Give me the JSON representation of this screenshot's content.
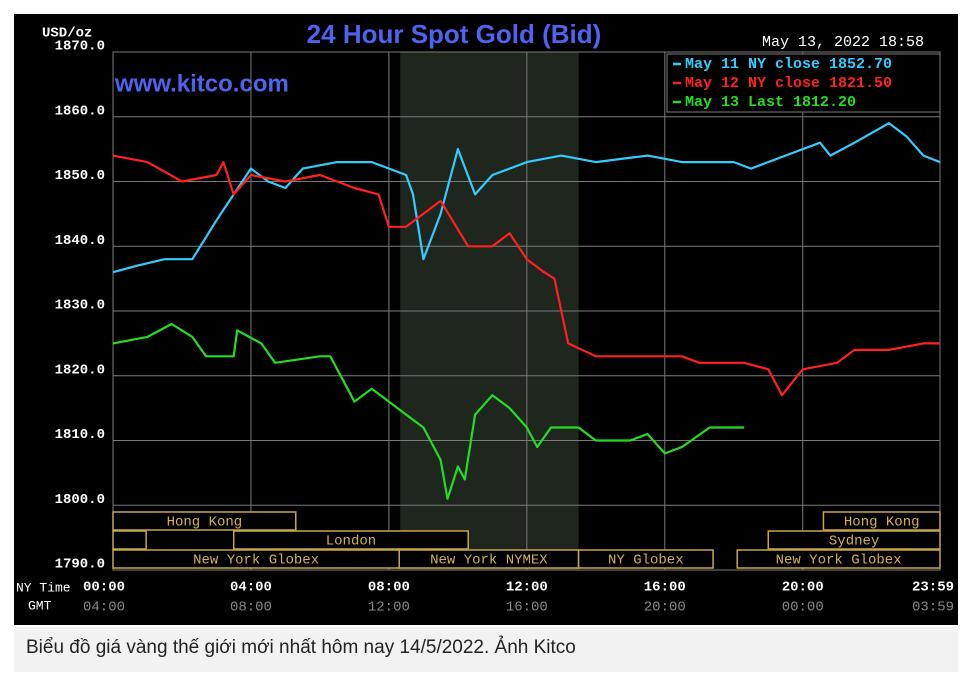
{
  "chart_data": {
    "type": "line",
    "title": "24 Hour Spot Gold (Bid)",
    "unit_label": "USD/oz",
    "timestamp": "May 13, 2022 18:58",
    "watermark": "www.kitco.com",
    "xlabel": "NY Time",
    "x2label": "GMT",
    "xlim": [
      0,
      23.98
    ],
    "xticks": [
      {
        "value": 0,
        "label": "00:00"
      },
      {
        "value": 4,
        "label": "04:00"
      },
      {
        "value": 8,
        "label": "08:00"
      },
      {
        "value": 12,
        "label": "12:00"
      },
      {
        "value": 16,
        "label": "16:00"
      },
      {
        "value": 20,
        "label": "20:00"
      },
      {
        "value": 23.98,
        "label": "23:59"
      }
    ],
    "gmt_labels": [
      "04:00",
      "08:00",
      "12:00",
      "16:00",
      "20:00",
      "00:00",
      "03:59"
    ],
    "ylim": [
      1790,
      1870
    ],
    "yticks": [
      {
        "value": 1790,
        "label": "1790.0"
      },
      {
        "value": 1800,
        "label": "1800.0"
      },
      {
        "value": 1810,
        "label": "1810.0"
      },
      {
        "value": 1820,
        "label": "1820.0"
      },
      {
        "value": 1830,
        "label": "1830.0"
      },
      {
        "value": 1840,
        "label": "1840.0"
      },
      {
        "value": 1850,
        "label": "1850.0"
      },
      {
        "value": 1860,
        "label": "1860.0"
      },
      {
        "value": 1870,
        "label": "1870.0"
      }
    ],
    "grid": true,
    "legend": "upper right",
    "shaded": [
      8.33,
      13.5
    ],
    "series": [
      {
        "name": "May 11 NY close 1852.70",
        "color": "#33ccff",
        "x": [
          0,
          0.7,
          1.5,
          2.3,
          3,
          3.5,
          4,
          4.5,
          5,
          5.5,
          6.5,
          7.5,
          8.5,
          8.7,
          9.0,
          9.5,
          10,
          10.5,
          11,
          12,
          13,
          14,
          15.5,
          16.5,
          18,
          18.5,
          19.5,
          20.5,
          20.8,
          21.5,
          22.5,
          23,
          23.5,
          23.98
        ],
        "values": [
          1836,
          1837,
          1838,
          1838,
          1844,
          1848,
          1852,
          1850,
          1849,
          1852,
          1853,
          1853,
          1851,
          1848,
          1838,
          1845,
          1855,
          1848,
          1851,
          1853,
          1854,
          1853,
          1854,
          1853,
          1853,
          1852,
          1854,
          1856,
          1854,
          1856,
          1859,
          1857,
          1854,
          1853
        ]
      },
      {
        "name": "May 12 NY close 1821.50",
        "color": "#ff2020",
        "x": [
          0,
          1,
          2,
          3,
          3.2,
          3.5,
          4,
          5,
          6,
          7,
          7.7,
          8,
          8.5,
          9.5,
          10.3,
          11,
          11.5,
          12,
          12.5,
          12.8,
          13.2,
          14,
          15.5,
          16.5,
          17,
          18.3,
          19,
          19.4,
          20,
          21,
          21.5,
          22.5,
          23.5,
          23.98
        ],
        "values": [
          1854,
          1853,
          1850,
          1851,
          1853,
          1848,
          1851,
          1850,
          1851,
          1849,
          1848,
          1843,
          1843,
          1847,
          1840,
          1840,
          1842,
          1838,
          1836,
          1835,
          1825,
          1823,
          1823,
          1823,
          1822,
          1822,
          1821,
          1817,
          1821,
          1822,
          1824,
          1824,
          1825,
          1825
        ]
      },
      {
        "name": "May 13 Last 1812.20",
        "color": "#22dd22",
        "x": [
          0,
          1,
          1.7,
          2.3,
          2.7,
          3.5,
          3.6,
          4.3,
          4.7,
          6,
          6.3,
          6.7,
          7,
          7.5,
          8,
          8.5,
          9,
          9.5,
          9.7,
          10,
          10.2,
          10.5,
          11,
          11.5,
          12,
          12.3,
          12.7,
          13.5,
          14,
          15,
          15.5,
          16,
          16.5,
          17.3,
          17.7,
          18.3
        ],
        "values": [
          1825,
          1826,
          1828,
          1826,
          1823,
          1823,
          1827,
          1825,
          1822,
          1823,
          1823,
          1819,
          1816,
          1818,
          1816,
          1814,
          1812,
          1807,
          1801,
          1806,
          1804,
          1814,
          1817,
          1815,
          1812,
          1809,
          1812,
          1812,
          1810,
          1810,
          1811,
          1808,
          1809,
          1812,
          1812,
          1812
        ]
      }
    ],
    "session_rows": [
      [
        {
          "name": "Hong Kong",
          "start": 0,
          "end": 5.3
        },
        {
          "name": "Hong Kong",
          "start": 20.6,
          "end": 23.98
        }
      ],
      [
        {
          "name": null,
          "start": 0,
          "end": 0.96
        },
        {
          "name": "London",
          "start": 3.5,
          "end": 10.3
        },
        {
          "name": "Sydney",
          "start": 19.0,
          "end": 23.98
        }
      ],
      [
        {
          "name": "New York Globex",
          "start": 0,
          "end": 8.3
        },
        {
          "name": "New York NYMEX",
          "start": 8.3,
          "end": 13.5
        },
        {
          "name": "NY Globex",
          "start": 13.5,
          "end": 17.4
        },
        {
          "name": "New York Globex",
          "start": 18.1,
          "end": 23.98
        }
      ]
    ]
  },
  "caption": "Biểu đồ giá vàng thế giới mới nhất hôm nay 14/5/2022. Ảnh Kitco"
}
